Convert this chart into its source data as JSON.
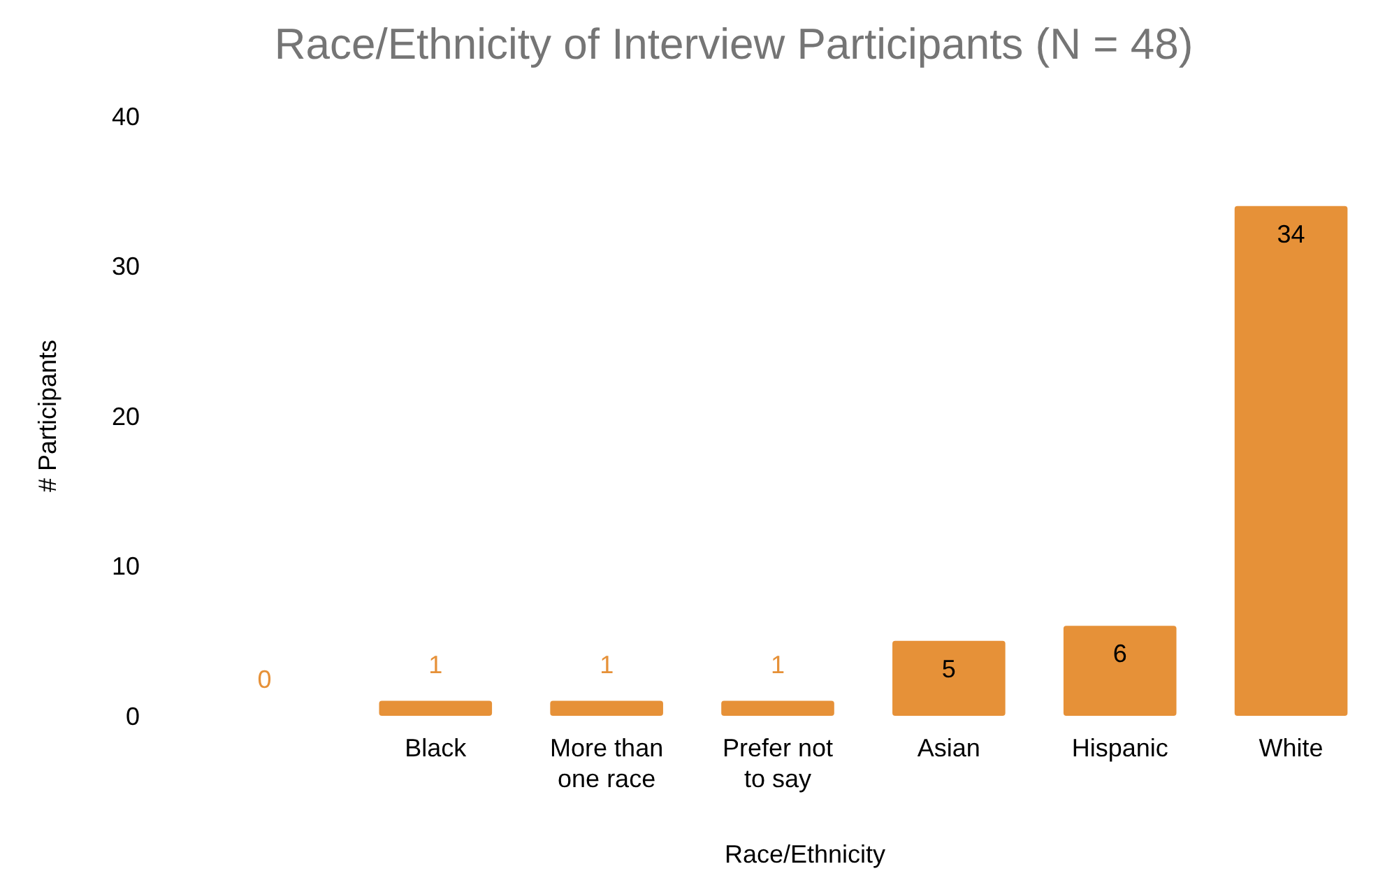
{
  "chart_data": {
    "type": "bar",
    "title": "Race/Ethnicity of Interview Participants (N = 48)",
    "xlabel": "Race/Ethnicity",
    "ylabel": "# Participants",
    "categories": [
      null,
      "Black",
      "More than one race",
      "Prefer not to say",
      "Asian",
      "Hispanic",
      "White"
    ],
    "values": [
      0,
      1,
      1,
      1,
      5,
      6,
      34
    ],
    "color": "#e69138",
    "ylim": [
      0,
      40
    ],
    "yticks": [
      0,
      10,
      20,
      30,
      40
    ],
    "grid": false,
    "data_labels": true
  }
}
